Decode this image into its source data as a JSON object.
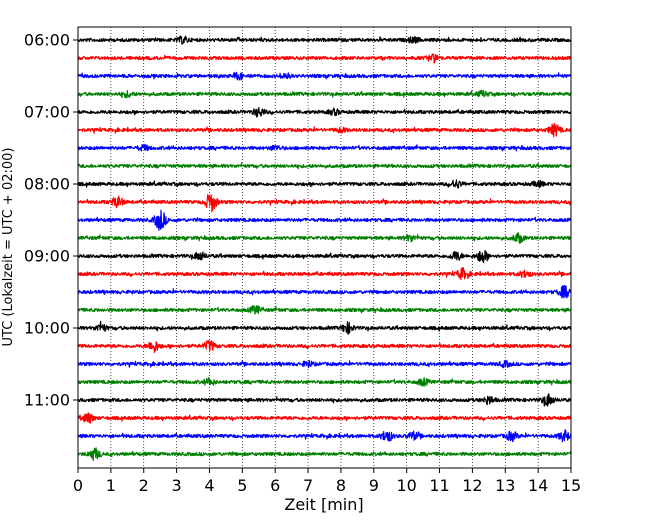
{
  "chart_data": {
    "type": "line",
    "title": "",
    "xlabel": "Zeit  [min]",
    "ylabel": "UTC (Lokalzeit = UTC + 02:00)",
    "xlim": [
      0,
      15
    ],
    "x_ticks": [
      "0",
      "1",
      "2",
      "3",
      "4",
      "5",
      "6",
      "7",
      "8",
      "9",
      "10",
      "11",
      "12",
      "13",
      "14",
      "15"
    ],
    "y_ticks": [
      "06:00",
      "07:00",
      "08:00",
      "09:00",
      "10:00",
      "11:00"
    ],
    "grid": "vertical-dotted",
    "line_colors": [
      "#000000",
      "#ff0000",
      "#0000ff",
      "#008000"
    ],
    "trace_start_times": [
      "06:00",
      "06:15",
      "06:30",
      "06:45",
      "07:00",
      "07:15",
      "07:30",
      "07:45",
      "08:00",
      "08:15",
      "08:30",
      "08:45",
      "09:00",
      "09:15",
      "09:30",
      "09:45",
      "10:00",
      "10:15",
      "10:30",
      "10:45",
      "11:00",
      "11:15",
      "11:30",
      "11:45"
    ],
    "series": [
      {
        "start": "06:00",
        "color": "#000000",
        "events": [
          {
            "t": 3.2,
            "a": 0.5
          },
          {
            "t": 10.2,
            "a": 0.4
          }
        ]
      },
      {
        "start": "06:15",
        "color": "#ff0000",
        "events": [
          {
            "t": 10.8,
            "a": 0.6
          }
        ]
      },
      {
        "start": "06:30",
        "color": "#0000ff",
        "events": [
          {
            "t": 4.9,
            "a": 0.5
          },
          {
            "t": 6.3,
            "a": 0.4
          }
        ]
      },
      {
        "start": "06:45",
        "color": "#008000",
        "events": [
          {
            "t": 1.5,
            "a": 0.4
          },
          {
            "t": 12.3,
            "a": 0.4
          }
        ]
      },
      {
        "start": "07:00",
        "color": "#000000",
        "events": [
          {
            "t": 5.5,
            "a": 0.7
          },
          {
            "t": 7.8,
            "a": 0.4
          }
        ]
      },
      {
        "start": "07:15",
        "color": "#ff0000",
        "events": [
          {
            "t": 8.0,
            "a": 0.3
          },
          {
            "t": 14.5,
            "a": 0.9
          }
        ]
      },
      {
        "start": "07:30",
        "color": "#0000ff",
        "events": [
          {
            "t": 2.0,
            "a": 0.4
          },
          {
            "t": 6.0,
            "a": 0.3
          }
        ]
      },
      {
        "start": "07:45",
        "color": "#008000",
        "events": []
      },
      {
        "start": "08:00",
        "color": "#000000",
        "events": [
          {
            "t": 11.5,
            "a": 0.6
          },
          {
            "t": 14.0,
            "a": 0.4
          }
        ]
      },
      {
        "start": "08:15",
        "color": "#ff0000",
        "events": [
          {
            "t": 1.2,
            "a": 0.8
          },
          {
            "t": 4.05,
            "a": 1.5
          }
        ]
      },
      {
        "start": "08:30",
        "color": "#0000ff",
        "events": [
          {
            "t": 2.5,
            "a": 1.6
          }
        ]
      },
      {
        "start": "08:45",
        "color": "#008000",
        "events": [
          {
            "t": 10.1,
            "a": 0.5
          },
          {
            "t": 13.4,
            "a": 0.7
          }
        ]
      },
      {
        "start": "09:00",
        "color": "#000000",
        "events": [
          {
            "t": 3.7,
            "a": 0.6
          },
          {
            "t": 11.5,
            "a": 0.7
          },
          {
            "t": 12.3,
            "a": 1.0
          }
        ]
      },
      {
        "start": "09:15",
        "color": "#ff0000",
        "events": [
          {
            "t": 11.7,
            "a": 0.8
          },
          {
            "t": 13.6,
            "a": 0.5
          }
        ]
      },
      {
        "start": "09:30",
        "color": "#0000ff",
        "events": [
          {
            "t": 14.8,
            "a": 0.9
          }
        ]
      },
      {
        "start": "09:45",
        "color": "#008000",
        "events": [
          {
            "t": 5.4,
            "a": 0.6
          }
        ]
      },
      {
        "start": "10:00",
        "color": "#000000",
        "events": [
          {
            "t": 0.7,
            "a": 0.6
          },
          {
            "t": 8.2,
            "a": 0.8
          }
        ]
      },
      {
        "start": "10:15",
        "color": "#ff0000",
        "events": [
          {
            "t": 2.3,
            "a": 0.9
          },
          {
            "t": 4.0,
            "a": 0.8
          }
        ]
      },
      {
        "start": "10:30",
        "color": "#0000ff",
        "events": [
          {
            "t": 7.0,
            "a": 0.4
          },
          {
            "t": 13.0,
            "a": 0.4
          }
        ]
      },
      {
        "start": "10:45",
        "color": "#008000",
        "events": [
          {
            "t": 4.0,
            "a": 0.5
          },
          {
            "t": 10.5,
            "a": 0.5
          }
        ]
      },
      {
        "start": "11:00",
        "color": "#000000",
        "events": [
          {
            "t": 12.5,
            "a": 0.6
          },
          {
            "t": 14.3,
            "a": 0.9
          }
        ]
      },
      {
        "start": "11:15",
        "color": "#ff0000",
        "events": [
          {
            "t": 0.3,
            "a": 0.8
          }
        ]
      },
      {
        "start": "11:30",
        "color": "#0000ff",
        "events": [
          {
            "t": 9.4,
            "a": 0.9
          },
          {
            "t": 10.2,
            "a": 0.6
          },
          {
            "t": 13.2,
            "a": 0.7
          },
          {
            "t": 14.8,
            "a": 0.8
          }
        ]
      },
      {
        "start": "11:45",
        "color": "#008000",
        "events": [
          {
            "t": 0.5,
            "a": 0.9
          }
        ]
      }
    ]
  }
}
